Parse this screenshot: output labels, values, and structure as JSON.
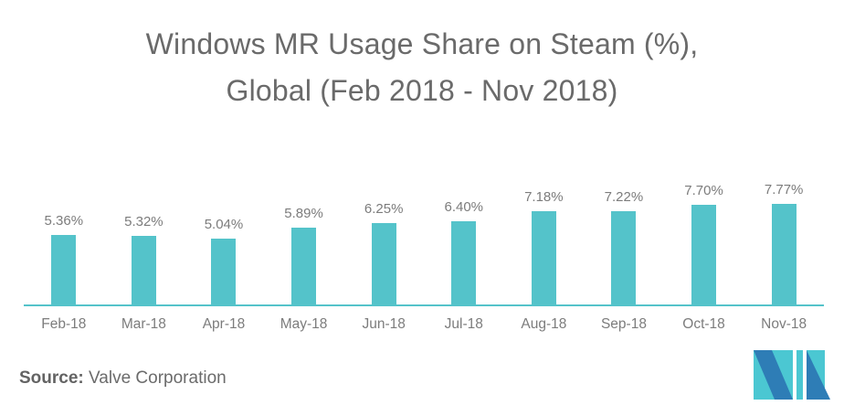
{
  "title": {
    "line1": "Windows MR Usage Share on Steam (%),",
    "line2": "Global (Feb 2018 - Nov 2018)"
  },
  "source": {
    "label": "Source:",
    "text": "Valve Corporation"
  },
  "logo": {
    "name": "mordor-intelligence-logo",
    "teal": "#4bc7d2",
    "blue": "#2e7db6"
  },
  "colors": {
    "bar": "#54c3ca",
    "axis": "#54c3ca",
    "title_text": "#6a6a6a",
    "label_text": "#7c7c7c"
  },
  "chart_data": {
    "type": "bar",
    "title": "Windows MR Usage Share on Steam (%), Global (Feb 2018 - Nov 2018)",
    "categories": [
      "Feb-18",
      "Mar-18",
      "Apr-18",
      "May-18",
      "Jun-18",
      "Jul-18",
      "Aug-18",
      "Sep-18",
      "Oct-18",
      "Nov-18"
    ],
    "values": [
      5.36,
      5.32,
      5.04,
      5.89,
      6.25,
      6.4,
      7.18,
      7.22,
      7.7,
      7.77
    ],
    "value_labels": [
      "5.36%",
      "5.32%",
      "5.04%",
      "5.89%",
      "6.25%",
      "6.40%",
      "7.18%",
      "7.22%",
      "7.70%",
      "7.77%"
    ],
    "xlabel": "",
    "ylabel": "",
    "ylim": [
      0,
      8.5
    ],
    "grid": false,
    "legend": false,
    "bar_color": "#54c3ca",
    "data_labels_shown": true
  }
}
